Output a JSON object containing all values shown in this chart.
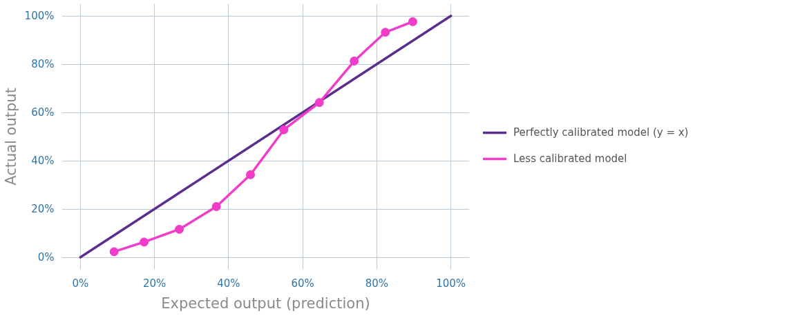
{
  "chart_data": {
    "type": "line",
    "xlabel": "Expected output (prediction)",
    "ylabel": "Actual output",
    "xlim": [
      -5,
      105
    ],
    "ylim": [
      -5,
      105
    ],
    "xticks": [
      {
        "value": 0,
        "label": "0%"
      },
      {
        "value": 20,
        "label": "20%"
      },
      {
        "value": 40,
        "label": "40%"
      },
      {
        "value": 60,
        "label": "60%"
      },
      {
        "value": 80,
        "label": "80%"
      },
      {
        "value": 100,
        "label": "100%"
      }
    ],
    "yticks": [
      {
        "value": 0,
        "label": "0%"
      },
      {
        "value": 20,
        "label": "20%"
      },
      {
        "value": 40,
        "label": "40%"
      },
      {
        "value": 60,
        "label": "60%"
      },
      {
        "value": 80,
        "label": "80%"
      },
      {
        "value": 100,
        "label": "100%"
      }
    ],
    "grid": true,
    "legend": "right",
    "line_style": "solid",
    "series": [
      {
        "name": "Perfectly calibrated model (y = x)",
        "color": "#5b2d8e",
        "x": [
          0,
          100
        ],
        "values": [
          0,
          100
        ],
        "marker": "none"
      },
      {
        "name": "Less calibrated model",
        "color": "#f03cc8",
        "x": [
          9.1,
          17.2,
          26.7,
          36.7,
          45.9,
          54.9,
          64.5,
          73.9,
          82.3,
          89.7
        ],
        "values": [
          2.3,
          6.3,
          11.6,
          21.0,
          34.2,
          52.8,
          64.1,
          81.3,
          93.2,
          97.6
        ],
        "marker": "circle"
      }
    ]
  }
}
